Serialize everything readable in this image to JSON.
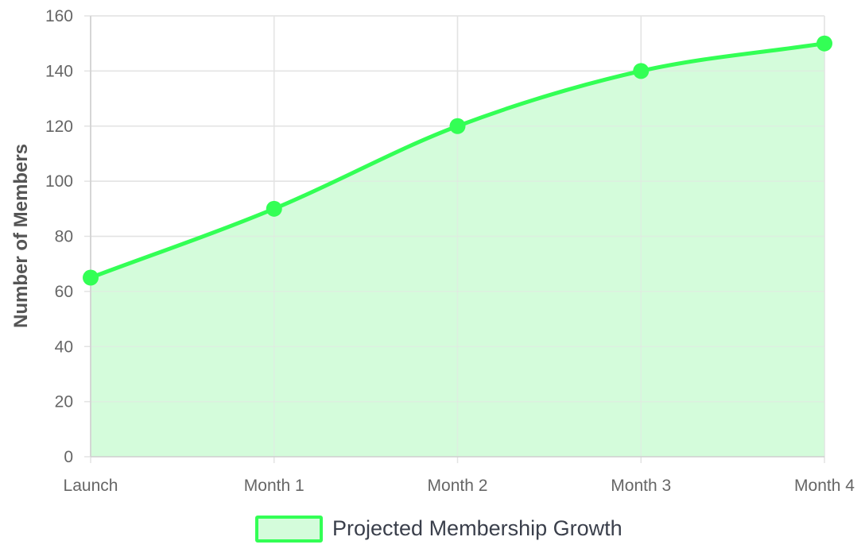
{
  "chart_data": {
    "type": "area",
    "categories": [
      "Launch",
      "Month 1",
      "Month 2",
      "Month 3",
      "Month 4"
    ],
    "series": [
      {
        "name": "Projected Membership Growth",
        "values": [
          65,
          90,
          120,
          140,
          150
        ]
      }
    ],
    "title": "",
    "xlabel": "",
    "ylabel": "Number of Members",
    "ylim": [
      0,
      160
    ],
    "y_ticks": [
      "0",
      "20",
      "40",
      "60",
      "80",
      "100",
      "120",
      "140",
      "160"
    ],
    "grid": true,
    "legend_position": "bottom",
    "colors": {
      "line": "#33ff55",
      "fill": "#d4fcdb",
      "grid": "#e3e3e3",
      "axis": "#cfcfcf"
    }
  }
}
